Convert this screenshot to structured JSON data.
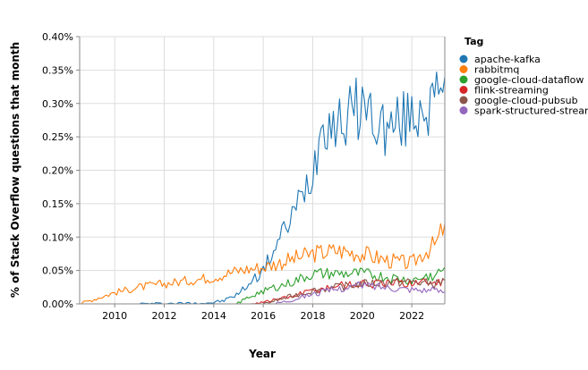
{
  "chart_data": {
    "type": "line",
    "xlabel": "Year",
    "ylabel": "% of Stack Overflow questions that month",
    "x_range": [
      "2008-08",
      "2023-05"
    ],
    "ylim": [
      0,
      0.4
    ],
    "x_ticks": [
      "2010",
      "2012",
      "2014",
      "2016",
      "2018",
      "2020",
      "2022"
    ],
    "y_ticks": [
      "0.00%",
      "0.05%",
      "0.10%",
      "0.15%",
      "0.20%",
      "0.25%",
      "0.30%",
      "0.35%",
      "0.40%"
    ],
    "grid": true,
    "legend": {
      "title": "Tag",
      "position": "right"
    },
    "series": [
      {
        "name": "apache-kafka",
        "color": "#1f77b4",
        "points": [
          [
            "2011-01",
            0.0
          ],
          [
            "2013-06",
            0.001
          ],
          [
            "2014-01",
            0.002
          ],
          [
            "2014-06",
            0.005
          ],
          [
            "2015-01",
            0.015
          ],
          [
            "2015-06",
            0.03
          ],
          [
            "2016-01",
            0.05
          ],
          [
            "2016-06",
            0.08
          ],
          [
            "2017-01",
            0.12
          ],
          [
            "2017-06",
            0.15
          ],
          [
            "2018-01",
            0.2
          ],
          [
            "2018-06",
            0.28
          ],
          [
            "2019-01",
            0.27
          ],
          [
            "2019-06",
            0.28
          ],
          [
            "2020-01",
            0.3
          ],
          [
            "2020-06",
            0.28
          ],
          [
            "2021-01",
            0.26
          ],
          [
            "2021-06",
            0.27
          ],
          [
            "2022-01",
            0.28
          ],
          [
            "2022-06",
            0.3
          ],
          [
            "2023-01",
            0.3
          ],
          [
            "2023-05",
            0.34
          ]
        ]
      },
      {
        "name": "rabbitmq",
        "color": "#ff7f0e",
        "points": [
          [
            "2008-08",
            0.0
          ],
          [
            "2009-01",
            0.005
          ],
          [
            "2009-06",
            0.01
          ],
          [
            "2010-01",
            0.017
          ],
          [
            "2011-01",
            0.025
          ],
          [
            "2012-01",
            0.03
          ],
          [
            "2013-01",
            0.035
          ],
          [
            "2014-01",
            0.04
          ],
          [
            "2015-01",
            0.05
          ],
          [
            "2016-01",
            0.055
          ],
          [
            "2017-01",
            0.065
          ],
          [
            "2018-01",
            0.075
          ],
          [
            "2019-01",
            0.08
          ],
          [
            "2020-01",
            0.075
          ],
          [
            "2021-01",
            0.065
          ],
          [
            "2022-01",
            0.06
          ],
          [
            "2022-06",
            0.075
          ],
          [
            "2023-01",
            0.09
          ],
          [
            "2023-05",
            0.12
          ]
        ]
      },
      {
        "name": "google-cloud-dataflow",
        "color": "#2ca02c",
        "points": [
          [
            "2014-12",
            0.0
          ],
          [
            "2015-06",
            0.01
          ],
          [
            "2016-01",
            0.02
          ],
          [
            "2017-01",
            0.03
          ],
          [
            "2018-01",
            0.045
          ],
          [
            "2019-01",
            0.045
          ],
          [
            "2020-01",
            0.045
          ],
          [
            "2021-01",
            0.04
          ],
          [
            "2022-01",
            0.035
          ],
          [
            "2022-06",
            0.04
          ],
          [
            "2023-01",
            0.045
          ],
          [
            "2023-05",
            0.055
          ]
        ]
      },
      {
        "name": "flink-streaming",
        "color": "#d62728",
        "points": [
          [
            "2015-06",
            0.0
          ],
          [
            "2016-01",
            0.003
          ],
          [
            "2017-01",
            0.01
          ],
          [
            "2018-01",
            0.02
          ],
          [
            "2019-01",
            0.028
          ],
          [
            "2020-01",
            0.03
          ],
          [
            "2021-01",
            0.03
          ],
          [
            "2022-01",
            0.032
          ],
          [
            "2023-01",
            0.033
          ],
          [
            "2023-05",
            0.035
          ]
        ]
      },
      {
        "name": "google-cloud-pubsub",
        "color": "#8c564b",
        "points": [
          [
            "2016-01",
            0.0
          ],
          [
            "2017-01",
            0.01
          ],
          [
            "2018-01",
            0.02
          ],
          [
            "2019-01",
            0.025
          ],
          [
            "2020-01",
            0.03
          ],
          [
            "2021-01",
            0.032
          ],
          [
            "2022-01",
            0.033
          ],
          [
            "2023-01",
            0.03
          ],
          [
            "2023-05",
            0.035
          ]
        ]
      },
      {
        "name": "spark-structured-streaming",
        "color": "#9467bd",
        "points": [
          [
            "2016-06",
            0.0
          ],
          [
            "2017-01",
            0.005
          ],
          [
            "2018-01",
            0.015
          ],
          [
            "2019-01",
            0.022
          ],
          [
            "2020-01",
            0.028
          ],
          [
            "2021-01",
            0.025
          ],
          [
            "2022-01",
            0.022
          ],
          [
            "2023-01",
            0.02
          ],
          [
            "2023-05",
            0.018
          ]
        ]
      }
    ]
  }
}
